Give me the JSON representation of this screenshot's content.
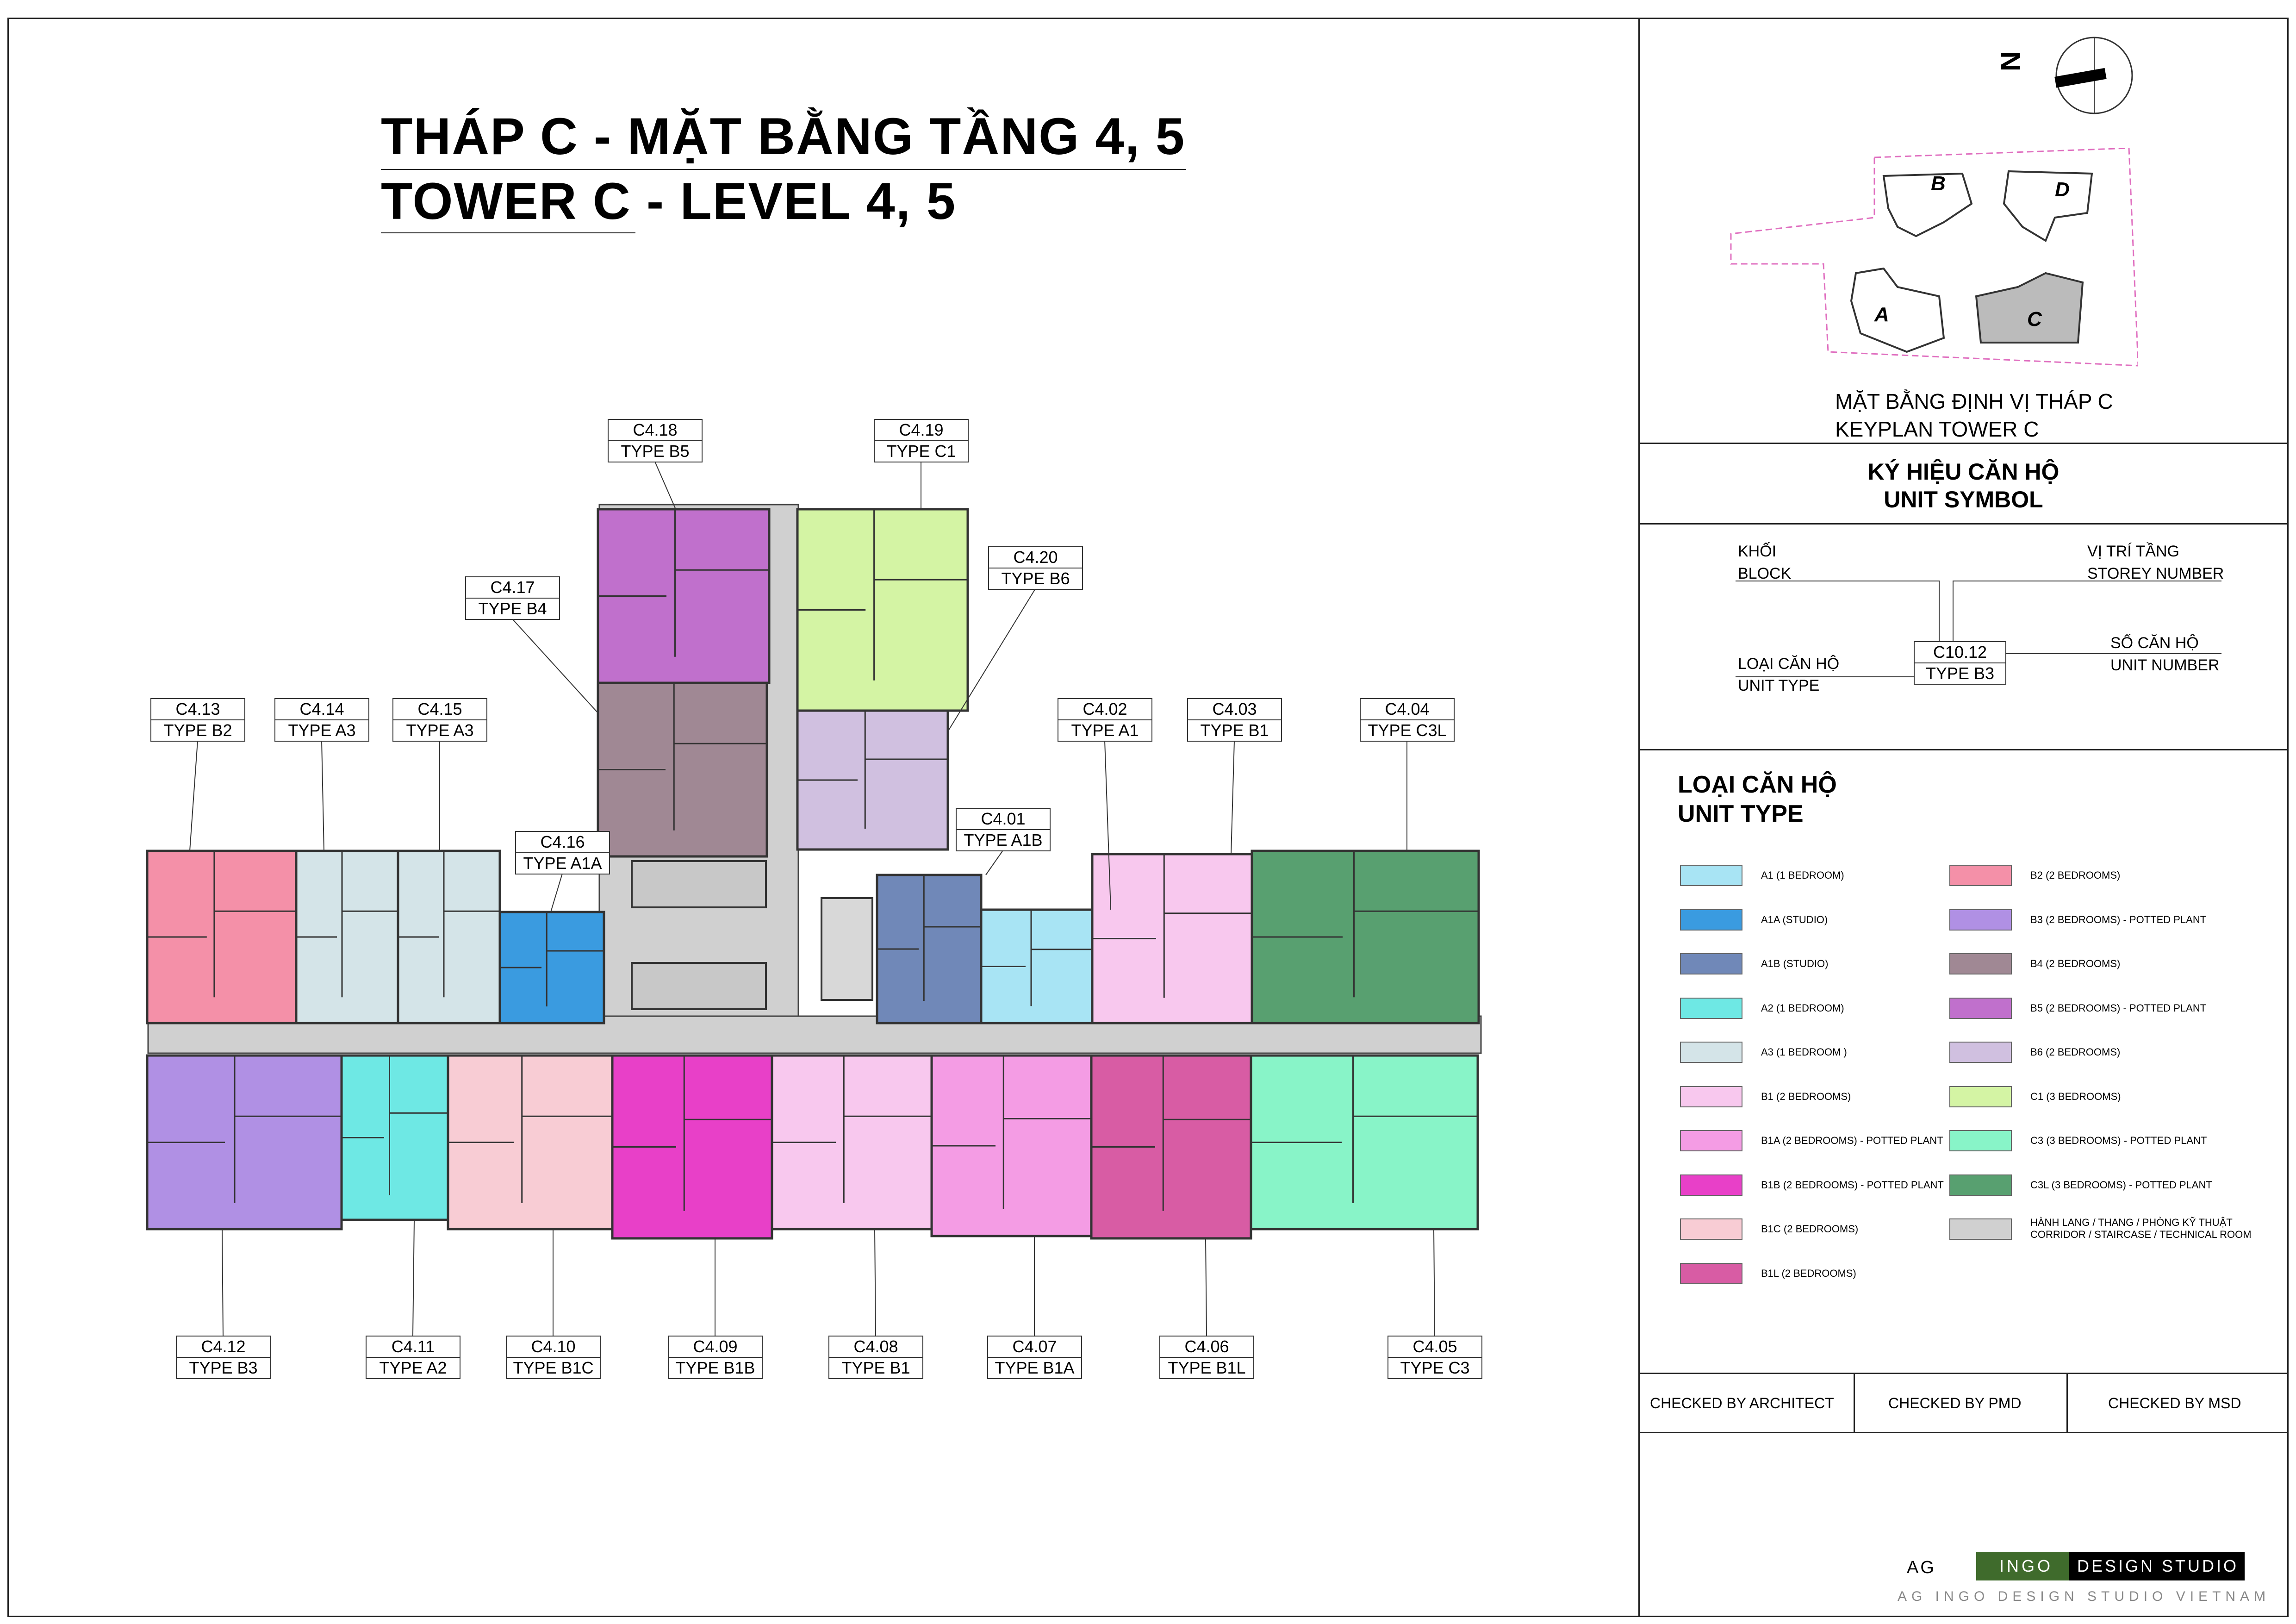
{
  "title": {
    "line1": "THÁP C - MẶT BẰNG TẦNG 4, 5",
    "line2": "TOWER C - LEVEL 4, 5"
  },
  "north_label": "N",
  "keyplan": {
    "caption1": "MẶT BẰNG ĐỊNH VỊ THÁP C",
    "caption2": "KEYPLAN TOWER C",
    "blocks": [
      "B",
      "D",
      "A",
      "C"
    ]
  },
  "unit_symbol": {
    "heading1": "KÝ HIỆU CĂN HỘ",
    "heading2": "UNIT SYMBOL",
    "block_vn": "KHỐI",
    "block_en": "BLOCK",
    "storey_vn": "VỊ TRÍ TẦNG",
    "storey_en": "STOREY NUMBER",
    "type_vn": "LOẠI CĂN HỘ",
    "type_en": "UNIT TYPE",
    "number_vn": "SỐ CĂN HỘ",
    "number_en": "UNIT NUMBER",
    "sample_code": "C10.12",
    "sample_type": "TYPE B3"
  },
  "legend": {
    "heading1": "LOẠI CĂN HỘ",
    "heading2": "UNIT TYPE",
    "left": [
      {
        "label": "A1 (1 BEDROOM)",
        "color": "#a8e4f4"
      },
      {
        "label": "A1A (STUDIO)",
        "color": "#3a9be0"
      },
      {
        "label": "A1B (STUDIO)",
        "color": "#7088b8"
      },
      {
        "label": "A2 (1 BEDROOM)",
        "color": "#6ee8e4"
      },
      {
        "label": "A3 (1 BEDROOM )",
        "color": "#d4e4e8"
      },
      {
        "label": "B1 (2 BEDROOMS)",
        "color": "#f8c8ee"
      },
      {
        "label": "B1A (2 BEDROOMS) - POTTED PLANT",
        "color": "#f49ce4"
      },
      {
        "label": "B1B (2 BEDROOMS) - POTTED PLANT",
        "color": "#e840c8"
      },
      {
        "label": "B1C (2 BEDROOMS)",
        "color": "#f8ccd4"
      },
      {
        "label": "B1L (2 BEDROOMS)",
        "color": "#d85ca4"
      }
    ],
    "right": [
      {
        "label": "B2 (2 BEDROOMS)",
        "color": "#f490a8"
      },
      {
        "label": "B3 (2 BEDROOMS) - POTTED PLANT",
        "color": "#b090e4"
      },
      {
        "label": "B4 (2 BEDROOMS)",
        "color": "#a08894"
      },
      {
        "label": "B5 (2 BEDROOMS) - POTTED PLANT",
        "color": "#c070cc"
      },
      {
        "label": "B6 (2 BEDROOMS)",
        "color": "#d0c0e0"
      },
      {
        "label": "C1 (3 BEDROOMS)",
        "color": "#d4f4a4"
      },
      {
        "label": "C3 (3 BEDROOMS) - POTTED PLANT",
        "color": "#88f4c8"
      },
      {
        "label": "C3L (3 BEDROOMS) - POTTED PLANT",
        "color": "#58a070"
      },
      {
        "label": "HÀNH LANG / THANG / PHÒNG  KỸ THUẬT",
        "label2": "CORRIDOR / STAIRCASE / TECHNICAL ROOM",
        "color": "#d0d0d0"
      }
    ]
  },
  "checks": {
    "architect": "CHECKED BY ARCHITECT",
    "pmd": "CHECKED BY PMD",
    "msd": "CHECKED BY MSD"
  },
  "logo": {
    "ag": "AG",
    "ingo": "INGO",
    "studio": "DESIGN STUDIO",
    "footer": "AG INGO DESIGN STUDIO VIETNAM"
  },
  "units": [
    {
      "code": "C4.18",
      "type": "TYPE B5",
      "color": "#c070cc"
    },
    {
      "code": "C4.19",
      "type": "TYPE C1",
      "color": "#d4f4a4"
    },
    {
      "code": "C4.20",
      "type": "TYPE B6",
      "color": "#d0c0e0"
    },
    {
      "code": "C4.17",
      "type": "TYPE B4",
      "color": "#a08894"
    },
    {
      "code": "C4.13",
      "type": "TYPE B2",
      "color": "#f490a8"
    },
    {
      "code": "C4.14",
      "type": "TYPE A3",
      "color": "#d4e4e8"
    },
    {
      "code": "C4.15",
      "type": "TYPE A3",
      "color": "#d4e4e8"
    },
    {
      "code": "C4.16",
      "type": "TYPE A1A",
      "color": "#3a9be0"
    },
    {
      "code": "C4.01",
      "type": "TYPE A1B",
      "color": "#7088b8"
    },
    {
      "code": "C4.02",
      "type": "TYPE A1",
      "color": "#a8e4f4"
    },
    {
      "code": "C4.03",
      "type": "TYPE B1",
      "color": "#f8c8ee"
    },
    {
      "code": "C4.04",
      "type": "TYPE C3L",
      "color": "#58a070"
    },
    {
      "code": "C4.12",
      "type": "TYPE B3",
      "color": "#b090e4"
    },
    {
      "code": "C4.11",
      "type": "TYPE A2",
      "color": "#6ee8e4"
    },
    {
      "code": "C4.10",
      "type": "TYPE B1C",
      "color": "#f8ccd4"
    },
    {
      "code": "C4.09",
      "type": "TYPE B1B",
      "color": "#e840c8"
    },
    {
      "code": "C4.08",
      "type": "TYPE B1",
      "color": "#f8c8ee"
    },
    {
      "code": "C4.07",
      "type": "TYPE B1A",
      "color": "#f49ce4"
    },
    {
      "code": "C4.06",
      "type": "TYPE B1L",
      "color": "#d85ca4"
    },
    {
      "code": "C4.05",
      "type": "TYPE C3",
      "color": "#88f4c8"
    }
  ],
  "corridor_color": "#d0d0d0"
}
